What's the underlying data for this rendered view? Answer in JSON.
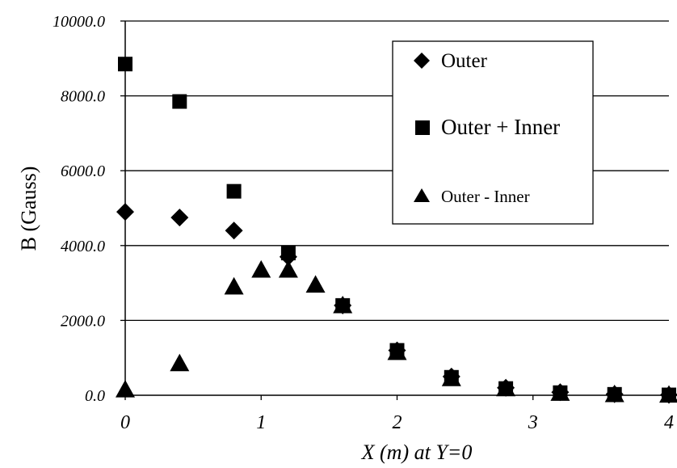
{
  "chart_data": {
    "type": "scatter",
    "title": "",
    "xlabel": "X (m) at Y=0",
    "ylabel": "B (Gauss)",
    "xlim": [
      0,
      4
    ],
    "ylim": [
      0,
      10000
    ],
    "x_ticks": [
      "0",
      "1",
      "2",
      "3",
      "4"
    ],
    "y_ticks": [
      "0.0",
      "2000.0",
      "4000.0",
      "6000.0",
      "8000.0",
      "10000.0"
    ],
    "grid": "horizontal",
    "legend_position": "top-right",
    "series": [
      {
        "name": "Outer",
        "marker": "diamond",
        "points": [
          {
            "x": 0.0,
            "y": 4900
          },
          {
            "x": 0.4,
            "y": 4750
          },
          {
            "x": 0.8,
            "y": 4400
          },
          {
            "x": 1.2,
            "y": 3700
          },
          {
            "x": 1.6,
            "y": 2400
          },
          {
            "x": 2.0,
            "y": 1200
          },
          {
            "x": 2.4,
            "y": 500
          },
          {
            "x": 2.8,
            "y": 200
          },
          {
            "x": 3.2,
            "y": 80
          },
          {
            "x": 3.6,
            "y": 30
          },
          {
            "x": 4.0,
            "y": 10
          }
        ]
      },
      {
        "name": "Outer + Inner",
        "marker": "square",
        "points": [
          {
            "x": 0.0,
            "y": 8850
          },
          {
            "x": 0.4,
            "y": 7850
          },
          {
            "x": 0.8,
            "y": 5450
          },
          {
            "x": 1.2,
            "y": 3800
          },
          {
            "x": 1.6,
            "y": 2400
          },
          {
            "x": 2.0,
            "y": 1200
          },
          {
            "x": 2.4,
            "y": 480
          },
          {
            "x": 2.8,
            "y": 180
          },
          {
            "x": 3.2,
            "y": 70
          },
          {
            "x": 3.6,
            "y": 25
          },
          {
            "x": 4.0,
            "y": 10
          }
        ]
      },
      {
        "name": "Outer - Inner",
        "marker": "triangle",
        "points": [
          {
            "x": 0.0,
            "y": 150
          },
          {
            "x": 0.4,
            "y": 850
          },
          {
            "x": 0.8,
            "y": 2900
          },
          {
            "x": 1.0,
            "y": 3350
          },
          {
            "x": 1.2,
            "y": 3350
          },
          {
            "x": 1.4,
            "y": 2950
          },
          {
            "x": 1.6,
            "y": 2400
          },
          {
            "x": 2.0,
            "y": 1150
          },
          {
            "x": 2.4,
            "y": 450
          },
          {
            "x": 2.8,
            "y": 180
          },
          {
            "x": 3.2,
            "y": 60
          },
          {
            "x": 3.6,
            "y": 25
          },
          {
            "x": 4.0,
            "y": 10
          }
        ]
      }
    ],
    "colors": {
      "marker": "#000000",
      "grid": "#000000",
      "background": "#ffffff"
    }
  }
}
